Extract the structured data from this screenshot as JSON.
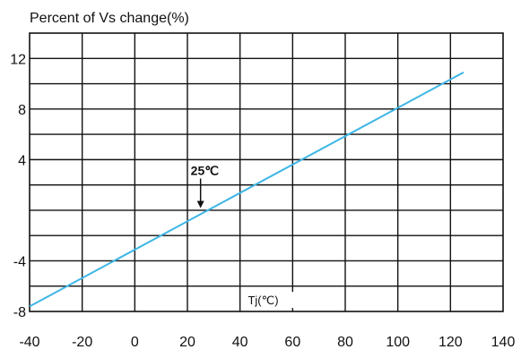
{
  "chart_data": {
    "type": "line",
    "title": "Percent of Vs change(%)",
    "xlabel": "Tj(℃)",
    "ylabel": "",
    "xlim": [
      -40,
      140
    ],
    "ylim": [
      -8,
      14
    ],
    "x_ticks": [
      -40,
      -20,
      0,
      20,
      40,
      60,
      80,
      100,
      120,
      140
    ],
    "y_tick_labels": [
      12,
      8,
      4,
      -4,
      -8
    ],
    "grid": true,
    "x_grid_step": 20,
    "y_grid_step": 2,
    "series": [
      {
        "x": [
          -40,
          125
        ],
        "y": [
          -7.6,
          10.9
        ],
        "color": "#3eb6e6"
      }
    ],
    "annotations": [
      {
        "text": "25℃",
        "x": 25,
        "y": 0.1
      }
    ]
  }
}
